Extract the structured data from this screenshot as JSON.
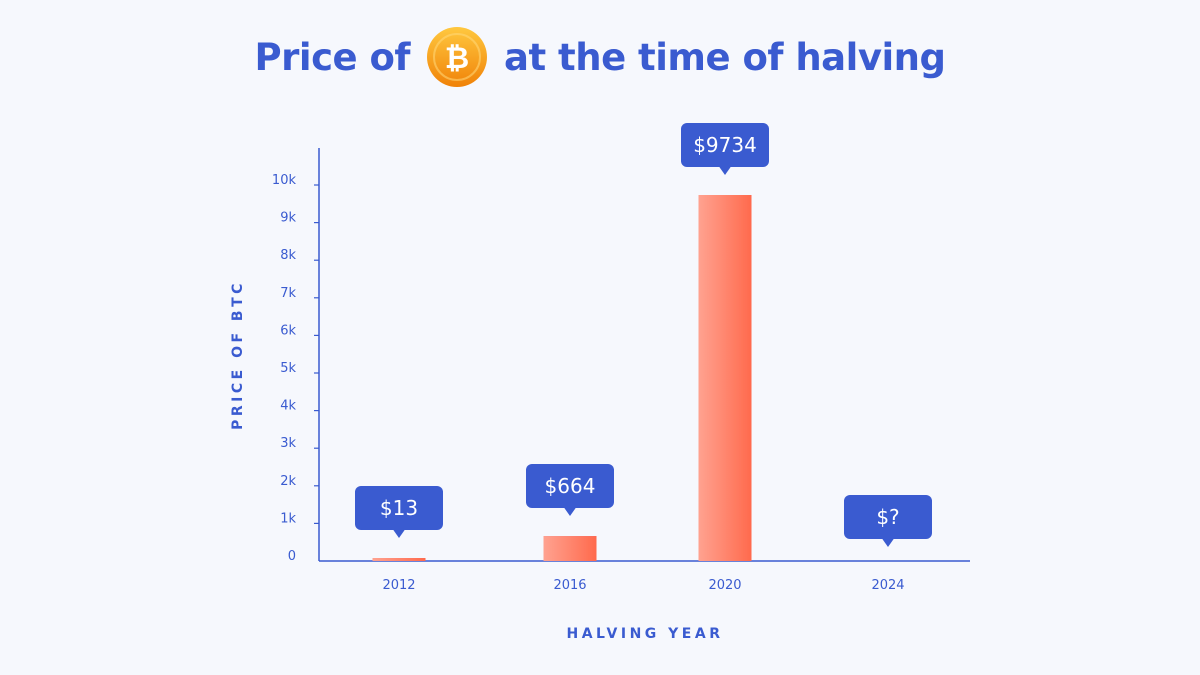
{
  "title": {
    "before": "Price of",
    "after": "at the time of halving",
    "coin_icon": "bitcoin-icon",
    "coin_symbol": "₿"
  },
  "colors": {
    "accent": "#3a5bd0",
    "bar_light": "#ffa290",
    "bar_dark": "#ff6a4d",
    "coin_light": "#ffc23d",
    "coin_dark": "#f28a0b",
    "callout": "#3a5bd0",
    "background": "#f6f8fd"
  },
  "chart_data": {
    "type": "bar",
    "xlabel": "HALVING YEAR",
    "ylabel": "PRICE OF BTC",
    "ylim": [
      0,
      10000
    ],
    "yticks": [
      0,
      1000,
      2000,
      3000,
      4000,
      5000,
      6000,
      7000,
      8000,
      9000,
      10000
    ],
    "ytick_labels": [
      "0",
      "1k",
      "2k",
      "3k",
      "4k",
      "5k",
      "6k",
      "7k",
      "8k",
      "9k",
      "10k"
    ],
    "categories": [
      "2012",
      "2016",
      "2020",
      "2024"
    ],
    "values": [
      13,
      664,
      9734,
      null
    ],
    "data_labels": [
      "$13",
      "$664",
      "$9734",
      "$?"
    ],
    "grid": false,
    "legend": "none"
  }
}
